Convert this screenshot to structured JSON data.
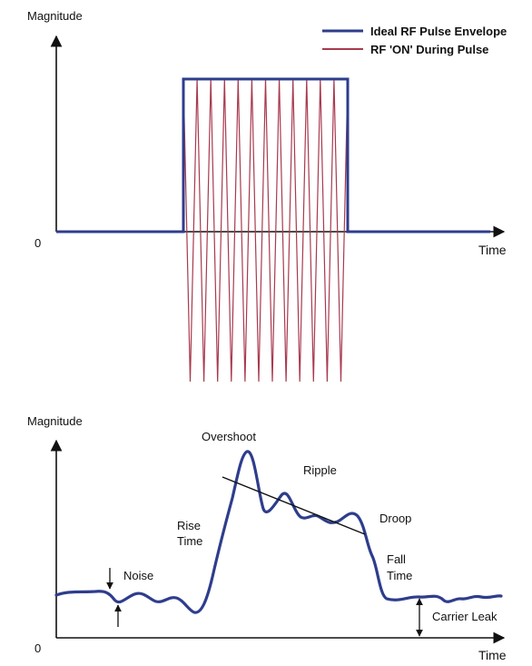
{
  "top_diagram": {
    "y_axis_label": "Magnitude",
    "x_axis_label": "Time",
    "origin_label": "0",
    "legend": [
      {
        "label": "Ideal RF Pulse Envelope",
        "color": "#2e3d8c"
      },
      {
        "label": "RF 'ON' During Pulse",
        "color": "#a83a4e"
      }
    ]
  },
  "bottom_diagram": {
    "y_axis_label": "Magnitude",
    "x_axis_label": "Time",
    "origin_label": "0",
    "annotations": {
      "overshoot": "Overshoot",
      "ripple": "Ripple",
      "droop": "Droop",
      "rise_time_line1": "Rise",
      "rise_time_line2": "Time",
      "fall_time_line1": "Fall",
      "fall_time_line2": "Time",
      "noise": "Noise",
      "carrier_leak": "Carrier Leak"
    },
    "waveform_color": "#2e3d8c"
  },
  "colors": {
    "axis": "#111111",
    "envelope": "#2e3d8c",
    "rf": "#a83a4e"
  }
}
